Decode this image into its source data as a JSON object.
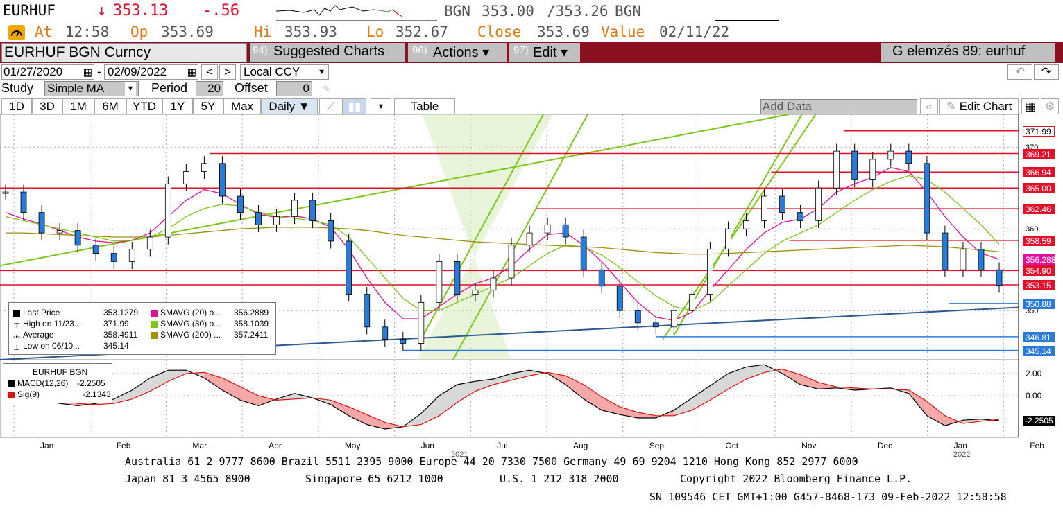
{
  "header": {
    "ticker": "EURHUF",
    "arrow": "↓",
    "last": "353.13",
    "change": "-.56",
    "bid_label": "BGN",
    "bid": "353.00",
    "ask": "/353.26",
    "ask_label": "BGN",
    "at_label": "At",
    "at_time": "12:58",
    "op_label": "Op",
    "op": "353.69",
    "hi_label": "Hi",
    "hi": "353.93",
    "lo_label": "Lo",
    "lo": "352.67",
    "close_label": "Close",
    "close": "353.69",
    "value_label": "Value",
    "value_date": "02/11/22"
  },
  "toolbar": {
    "security": "EURHUF BGN Curncy",
    "suggested_num": "94)",
    "suggested": "Suggested Charts",
    "actions_num": "96)",
    "actions": "Actions ▾",
    "edit_num": "97)",
    "edit": "Edit ▾",
    "page_title": "G elemzés 89: eurhuf"
  },
  "dates": {
    "start": "01/27/2020",
    "end": "02/09/2022",
    "currency": "Local CCY"
  },
  "study": {
    "label": "Study",
    "type": "Simple MA",
    "period_label": "Period",
    "period": "20",
    "offset_label": "Offset",
    "offset": "0"
  },
  "ranges": [
    "1D",
    "3D",
    "1M",
    "6M",
    "YTD",
    "1Y",
    "5Y",
    "Max"
  ],
  "freq": "Daily ▼",
  "table_label": "Table",
  "add_data": "Add Data",
  "edit_chart": "Edit Chart",
  "legend_main": {
    "rows": [
      {
        "label": "Last Price",
        "value": "353.1279",
        "color": "#000000"
      },
      {
        "label": "High on 11/23...",
        "value": "371.99",
        "color": "#ffffff"
      },
      {
        "label": "Average",
        "value": "358.4911",
        "color": "#ffffff"
      },
      {
        "label": "Low on 06/10...",
        "value": "345.14",
        "color": "#ffffff"
      }
    ],
    "ma_rows": [
      {
        "label": "SMAVG (20)  o...",
        "value": "356.2889",
        "color": "#e0109a"
      },
      {
        "label": "SMAVG (30)  o...",
        "value": "358.1039",
        "color": "#7cc61a"
      },
      {
        "label": "SMAVG (200)  ...",
        "value": "357.2411",
        "color": "#a09010"
      }
    ]
  },
  "legend_macd": {
    "title": "EURHUF BGN",
    "rows": [
      {
        "label": "MACD(12,26)",
        "value": "-2.2505",
        "color": "#000000"
      },
      {
        "label": "Sig(9)",
        "value": "-2.1343",
        "color": "#e01010"
      }
    ]
  },
  "price_levels": [
    {
      "label": "371.99",
      "bg": "#ffffff",
      "fg": "#000000",
      "border": "#e0102a"
    },
    {
      "label": "369.21",
      "bg": "#e0102a",
      "fg": "#ffffff",
      "border": "#e0102a"
    },
    {
      "label": "366.94",
      "bg": "#e0102a",
      "fg": "#ffffff",
      "border": "#e0102a"
    },
    {
      "label": "365.00",
      "bg": "#e0102a",
      "fg": "#ffffff",
      "border": "#e0102a"
    },
    {
      "label": "362.46",
      "bg": "#e0102a",
      "fg": "#ffffff",
      "border": "#e0102a"
    },
    {
      "label": "358.59",
      "bg": "#e0102a",
      "fg": "#ffffff",
      "border": "#e0102a"
    },
    {
      "label": "356.2889",
      "bg": "#e0109a",
      "fg": "#ffffff",
      "border": "#e0109a"
    },
    {
      "label": "354.90",
      "bg": "#e0102a",
      "fg": "#ffffff",
      "border": "#e0102a"
    },
    {
      "label": "353.15",
      "bg": "#e0102a",
      "fg": "#ffffff",
      "border": "#e0102a"
    },
    {
      "label": "350.88",
      "bg": "#2a7ad8",
      "fg": "#ffffff",
      "border": "#2a7ad8"
    },
    {
      "label": "346.81",
      "bg": "#2a7ad8",
      "fg": "#ffffff",
      "border": "#2a7ad8"
    },
    {
      "label": "345.14",
      "bg": "#2a7ad8",
      "fg": "#ffffff",
      "border": "#2a7ad8"
    }
  ],
  "axis_ticks": [
    "370",
    "360",
    "350"
  ],
  "macd_ticks": [
    "2.00",
    "0.00",
    "-2.2505"
  ],
  "months": [
    "Jan",
    "Feb",
    "Mar",
    "Apr",
    "May",
    "Jun",
    "Jul",
    "Aug",
    "Sep",
    "Oct",
    "Nov",
    "Dec",
    "Jan",
    "Feb"
  ],
  "years": [
    "2021",
    "2022"
  ],
  "footer": {
    "line1": "Australia 61 2 9777 8600 Brazil 5511 2395 9000 Europe 44 20 7330 7500 Germany 49 69 9204 1210 Hong Kong 852 2977 6000",
    "line2a": "Japan 81 3 4565 8900",
    "line2b": "Singapore 65 6212 1000",
    "line2c": "U.S. 1 212 318 2000",
    "line2d": "Copyright 2022 Bloomberg Finance L.P.",
    "line3": "SN 109546 CET  GMT+1:00 G457-8468-173 09-Feb-2022 12:58:58"
  },
  "colors": {
    "accent_red": "#8b1020",
    "up": "#2a7ad8",
    "down": "#e0102a"
  },
  "chart_data": {
    "type": "candlestick",
    "title": "EURHUF BGN Curncy",
    "ylim": [
      344,
      374
    ],
    "y_ticks": [
      350,
      360,
      370
    ],
    "categories": [
      "Jan",
      "Feb",
      "Mar",
      "Apr",
      "May",
      "Jun",
      "Jul",
      "Aug",
      "Sep",
      "Oct",
      "Nov",
      "Dec",
      "Jan",
      "Feb"
    ],
    "x": [
      0,
      1,
      2,
      3,
      4,
      5,
      6,
      7,
      8,
      9,
      10,
      11,
      12,
      13,
      14,
      15,
      16,
      17,
      18,
      19,
      20,
      21,
      22,
      23,
      24,
      25,
      26,
      27,
      28,
      29,
      30,
      31,
      32,
      33,
      34,
      35,
      36,
      37,
      38,
      39,
      40,
      41,
      42,
      43,
      44,
      45,
      46,
      47,
      48,
      49,
      50,
      51,
      52,
      53,
      54,
      55
    ],
    "series": [
      {
        "name": "Last Price",
        "values": [
          364.5,
          362.0,
          359.5,
          359.8,
          358.0,
          357.0,
          356.0,
          357.5,
          359.0,
          365.5,
          367.0,
          368.0,
          364.0,
          362.0,
          360.5,
          361.5,
          363.5,
          361.0,
          358.5,
          352.0,
          348.0,
          346.5,
          346.0,
          351.0,
          356.0,
          352.0,
          352.5,
          354.0,
          358.0,
          359.5,
          360.5,
          359.0,
          355.0,
          353.0,
          350.0,
          348.5,
          348.0,
          350.0,
          352.0,
          357.5,
          360.0,
          361.0,
          364.0,
          362.0,
          361.0,
          365.0,
          369.5,
          366.0,
          368.5,
          369.5,
          368.0,
          359.5,
          355.0,
          357.5,
          355.0,
          353.1
        ]
      },
      {
        "name": "SMAVG (20)",
        "values": [
          362.0,
          361.2,
          360.6,
          359.8,
          359.0,
          358.5,
          358.3,
          358.6,
          359.5,
          361.5,
          363.5,
          364.8,
          364.3,
          363.0,
          361.8,
          361.4,
          361.6,
          361.2,
          360.2,
          357.5,
          354.0,
          351.0,
          349.0,
          349.0,
          350.5,
          352.0,
          353.3,
          354.0,
          355.5,
          357.5,
          359.3,
          359.5,
          358.0,
          356.0,
          353.5,
          351.0,
          349.2,
          348.8,
          349.8,
          352.5,
          355.0,
          357.5,
          359.5,
          360.8,
          361.2,
          362.5,
          364.5,
          365.5,
          366.3,
          367.5,
          367.0,
          364.5,
          361.5,
          359.0,
          357.0,
          356.3
        ]
      },
      {
        "name": "SMAVG (30)",
        "values": [
          361.5,
          361.0,
          360.5,
          360.0,
          359.5,
          359.0,
          358.5,
          358.6,
          359.0,
          360.0,
          361.5,
          362.5,
          363.0,
          362.8,
          362.0,
          361.5,
          361.3,
          361.0,
          360.5,
          359.0,
          356.5,
          354.0,
          351.5,
          350.0,
          350.0,
          351.0,
          352.0,
          353.0,
          354.0,
          355.5,
          357.0,
          358.0,
          357.8,
          356.8,
          355.3,
          353.5,
          351.8,
          350.5,
          350.0,
          351.0,
          353.0,
          355.0,
          357.0,
          358.5,
          359.5,
          360.5,
          362.0,
          363.5,
          364.8,
          365.8,
          366.5,
          366.0,
          364.5,
          362.5,
          360.5,
          358.1
        ]
      },
      {
        "name": "SMAVG (200)",
        "values": [
          359.5,
          359.5,
          359.4,
          359.3,
          359.2,
          359.1,
          359.0,
          359.0,
          359.0,
          359.2,
          359.4,
          359.6,
          359.8,
          360.0,
          360.1,
          360.2,
          360.2,
          360.2,
          360.1,
          360.0,
          359.8,
          359.5,
          359.2,
          359.0,
          358.8,
          358.6,
          358.4,
          358.3,
          358.2,
          358.1,
          358.0,
          357.9,
          357.8,
          357.7,
          357.5,
          357.3,
          357.1,
          357.0,
          356.9,
          356.9,
          357.0,
          357.1,
          357.2,
          357.3,
          357.4,
          357.5,
          357.6,
          357.7,
          357.8,
          357.9,
          358.0,
          357.9,
          357.8,
          357.6,
          357.4,
          357.2
        ]
      }
    ],
    "macd": {
      "ylim": [
        -3.5,
        3
      ],
      "series": [
        {
          "name": "MACD(12,26)",
          "values": [
            0.2,
            0.0,
            -0.4,
            -0.7,
            -0.9,
            -0.7,
            -0.3,
            0.5,
            1.6,
            2.3,
            2.3,
            1.6,
            0.5,
            -0.4,
            -0.9,
            -0.3,
            0.2,
            -0.2,
            -0.8,
            -1.8,
            -2.6,
            -3.0,
            -2.8,
            -1.6,
            0.0,
            1.0,
            1.3,
            1.5,
            2.0,
            2.3,
            2.0,
            1.0,
            -0.3,
            -1.3,
            -1.7,
            -2.0,
            -2.0,
            -1.3,
            -0.2,
            0.9,
            2.0,
            2.6,
            2.8,
            2.0,
            1.0,
            0.6,
            0.7,
            0.5,
            0.6,
            0.7,
            0.2,
            -1.8,
            -2.7,
            -2.2,
            -2.1,
            -2.25
          ]
        },
        {
          "name": "Sig(9)",
          "values": [
            0.4,
            0.2,
            -0.1,
            -0.4,
            -0.7,
            -0.8,
            -0.7,
            -0.3,
            0.4,
            1.3,
            2.0,
            2.1,
            1.6,
            0.8,
            0.0,
            -0.4,
            -0.3,
            -0.2,
            -0.4,
            -1.0,
            -1.7,
            -2.4,
            -2.8,
            -2.6,
            -1.8,
            -0.6,
            0.4,
            1.0,
            1.4,
            1.8,
            2.1,
            1.8,
            1.0,
            -0.1,
            -1.0,
            -1.5,
            -1.8,
            -1.8,
            -1.3,
            -0.4,
            0.6,
            1.5,
            2.1,
            2.4,
            1.9,
            1.2,
            0.8,
            0.7,
            0.6,
            0.6,
            0.5,
            -0.5,
            -1.8,
            -2.5,
            -2.3,
            -2.13
          ]
        }
      ]
    }
  }
}
